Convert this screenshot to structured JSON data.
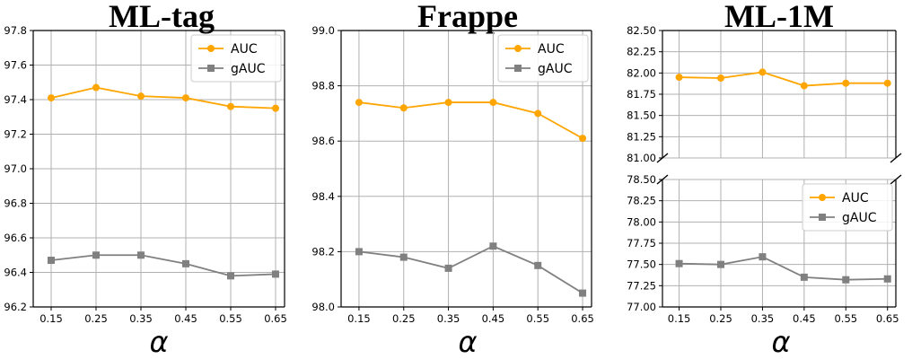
{
  "chart_data": [
    {
      "type": "line",
      "title": "ML-tag",
      "xlabel": "α",
      "x": [
        0.15,
        0.25,
        0.35,
        0.45,
        0.55,
        0.65
      ],
      "xticks": [
        "0.15",
        "0.25",
        "0.35",
        "0.45",
        "0.55",
        "0.65"
      ],
      "ylim": [
        96.2,
        97.8
      ],
      "yticks": [
        "96.2",
        "96.4",
        "96.6",
        "96.8",
        "97.0",
        "97.2",
        "97.4",
        "97.6",
        "97.8"
      ],
      "grid": true,
      "legend_position": "top-right",
      "series": [
        {
          "name": "AUC",
          "color": "#FFA500",
          "marker": "circle",
          "values": [
            97.41,
            97.47,
            97.42,
            97.41,
            97.36,
            97.35
          ]
        },
        {
          "name": "gAUC",
          "color": "#808080",
          "marker": "square",
          "values": [
            96.47,
            96.5,
            96.5,
            96.45,
            96.38,
            96.39
          ]
        }
      ]
    },
    {
      "type": "line",
      "title": "Frappe",
      "xlabel": "α",
      "x": [
        0.15,
        0.25,
        0.35,
        0.45,
        0.55,
        0.65
      ],
      "xticks": [
        "0.15",
        "0.25",
        "0.35",
        "0.45",
        "0.55",
        "0.65"
      ],
      "ylim": [
        98.0,
        99.0
      ],
      "yticks": [
        "98.0",
        "98.2",
        "98.4",
        "98.6",
        "98.8",
        "99.0"
      ],
      "grid": true,
      "legend_position": "top-right",
      "series": [
        {
          "name": "AUC",
          "color": "#FFA500",
          "marker": "circle",
          "values": [
            98.74,
            98.72,
            98.74,
            98.74,
            98.7,
            98.61
          ]
        },
        {
          "name": "gAUC",
          "color": "#808080",
          "marker": "square",
          "values": [
            98.2,
            98.18,
            98.14,
            98.22,
            98.15,
            98.05
          ]
        }
      ]
    },
    {
      "type": "line",
      "title": "ML-1M",
      "xlabel": "α",
      "x": [
        0.15,
        0.25,
        0.35,
        0.45,
        0.55,
        0.65
      ],
      "xticks": [
        "0.15",
        "0.25",
        "0.35",
        "0.45",
        "0.55",
        "0.65"
      ],
      "broken_axis": true,
      "ylim_upper": [
        81.0,
        82.5
      ],
      "yticks_upper": [
        "81.00",
        "81.25",
        "81.50",
        "81.75",
        "82.00",
        "82.25",
        "82.50"
      ],
      "ylim_lower": [
        77.0,
        78.5
      ],
      "yticks_lower": [
        "77.00",
        "77.25",
        "77.50",
        "77.75",
        "78.00",
        "78.25",
        "78.50"
      ],
      "grid": true,
      "legend_position": "lower panel, top-right",
      "series": [
        {
          "name": "AUC",
          "color": "#FFA500",
          "marker": "circle",
          "values": [
            81.95,
            81.94,
            82.01,
            81.85,
            81.88,
            81.88
          ]
        },
        {
          "name": "gAUC",
          "color": "#808080",
          "marker": "square",
          "values": [
            77.51,
            77.5,
            77.59,
            77.35,
            77.32,
            77.33
          ]
        }
      ]
    }
  ]
}
